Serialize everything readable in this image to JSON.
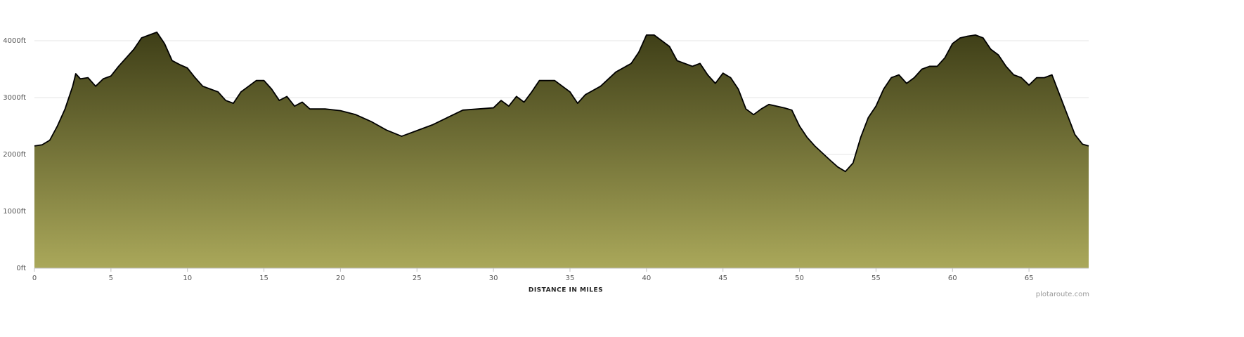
{
  "chart_data": {
    "type": "area",
    "x_label": "DISTANCE IN MILES",
    "credit": "plotaroute.com",
    "x": [
      0,
      0.5,
      1,
      1.5,
      2,
      2.5,
      2.7,
      3,
      3.5,
      4,
      4.5,
      5,
      5.5,
      6,
      6.5,
      7,
      7.5,
      8,
      8.5,
      9,
      9.5,
      10,
      10.5,
      11,
      11.5,
      12,
      12.5,
      13,
      13.5,
      14,
      14.5,
      15,
      15.5,
      16,
      16.5,
      17,
      17.5,
      18,
      19,
      20,
      21,
      22,
      23,
      24,
      25,
      26,
      27,
      28,
      29,
      30,
      30.5,
      31,
      31.5,
      32,
      32.5,
      33,
      34,
      35,
      35.5,
      36,
      37,
      38,
      39,
      39.5,
      40,
      40.5,
      41,
      41.5,
      42,
      43,
      43.5,
      44,
      44.5,
      45,
      45.5,
      46,
      46.5,
      47,
      47.5,
      48,
      49,
      49.5,
      50,
      50.5,
      51,
      52,
      52.5,
      53,
      53.5,
      54,
      54.5,
      55,
      55.5,
      56,
      56.5,
      57,
      57.5,
      58,
      58.5,
      59,
      59.5,
      60,
      60.5,
      61,
      61.5,
      62,
      62.5,
      63,
      63.5,
      64,
      64.5,
      65,
      65.5,
      66,
      66.5,
      67,
      67.5,
      68,
      68.5,
      68.9
    ],
    "values": [
      2150,
      2170,
      2250,
      2500,
      2800,
      3200,
      3420,
      3330,
      3350,
      3200,
      3330,
      3380,
      3550,
      3700,
      3850,
      4050,
      4100,
      4150,
      3950,
      3650,
      3580,
      3520,
      3350,
      3200,
      3150,
      3100,
      2950,
      2900,
      3100,
      3200,
      3300,
      3300,
      3150,
      2950,
      3020,
      2850,
      2920,
      2800,
      2800,
      2770,
      2700,
      2580,
      2430,
      2320,
      2420,
      2520,
      2650,
      2780,
      2800,
      2820,
      2950,
      2850,
      3020,
      2920,
      3100,
      3300,
      3300,
      3100,
      2900,
      3050,
      3200,
      3450,
      3600,
      3800,
      4100,
      4100,
      4000,
      3900,
      3650,
      3550,
      3600,
      3400,
      3250,
      3430,
      3350,
      3150,
      2800,
      2700,
      2800,
      2880,
      2820,
      2780,
      2500,
      2300,
      2150,
      1900,
      1780,
      1700,
      1850,
      2300,
      2650,
      2850,
      3150,
      3350,
      3400,
      3250,
      3350,
      3500,
      3550,
      3550,
      3700,
      3950,
      4050,
      4080,
      4100,
      4050,
      3850,
      3750,
      3550,
      3400,
      3350,
      3220,
      3350,
      3350,
      3400,
      3050,
      2700,
      2350,
      2180,
      2150
    ],
    "fill_top_color": "#3e3e17",
    "fill_bottom_color": "#aaa85a",
    "line_color": "#000000",
    "xlim": [
      0,
      68.9
    ],
    "xticks": [
      0,
      5,
      10,
      15,
      20,
      25,
      30,
      35,
      40,
      45,
      50,
      55,
      60,
      65
    ],
    "ylim": [
      0,
      4500
    ],
    "yticks": [
      {
        "value": 0,
        "label": "0ft"
      },
      {
        "value": 1000,
        "label": "1000ft"
      },
      {
        "value": 2000,
        "label": "2000ft"
      },
      {
        "value": 3000,
        "label": "3000ft"
      },
      {
        "value": 4000,
        "label": "4000ft"
      }
    ],
    "grid": true
  }
}
